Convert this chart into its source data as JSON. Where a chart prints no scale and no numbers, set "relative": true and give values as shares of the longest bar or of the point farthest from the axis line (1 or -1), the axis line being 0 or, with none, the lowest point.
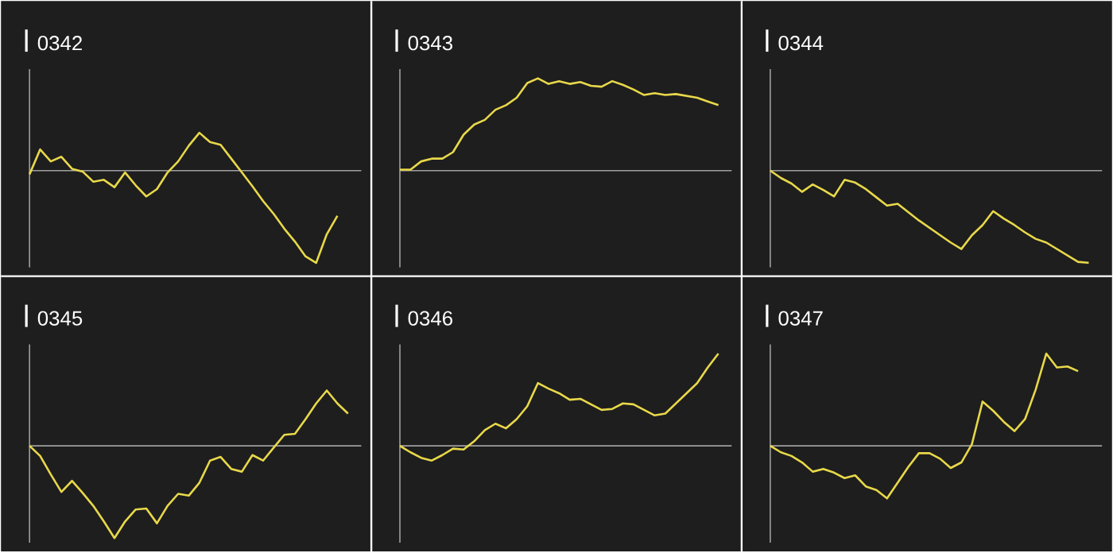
{
  "chart_data": [
    {
      "type": "line",
      "title": "0342",
      "relative": true,
      "color": "#e8d84a",
      "categories": [
        null,
        null,
        null,
        null,
        null,
        null,
        null,
        null,
        null,
        null,
        null,
        null,
        null,
        null,
        null,
        null,
        null,
        null,
        null,
        null,
        null,
        null,
        null,
        null,
        null,
        null,
        null,
        null,
        null,
        null,
        null,
        null
      ],
      "values": [
        -0.04,
        0.23,
        0.1,
        0.15,
        0.02,
        -0.01,
        -0.12,
        -0.1,
        -0.18,
        -0.02,
        -0.16,
        -0.28,
        -0.2,
        -0.02,
        0.1,
        0.27,
        0.41,
        0.31,
        0.28,
        0.13,
        -0.02,
        -0.17,
        -0.33,
        -0.47,
        -0.63,
        -0.77,
        -0.93,
        -1.0,
        -0.69,
        -0.49,
        null,
        null
      ]
    },
    {
      "type": "line",
      "title": "0343",
      "relative": true,
      "color": "#e8d84a",
      "categories": [
        null,
        null,
        null,
        null,
        null,
        null,
        null,
        null,
        null,
        null,
        null,
        null,
        null,
        null,
        null,
        null,
        null,
        null,
        null,
        null,
        null,
        null,
        null,
        null,
        null,
        null,
        null,
        null,
        null,
        null,
        null,
        null
      ],
      "values": [
        0.01,
        0.01,
        0.1,
        0.13,
        0.13,
        0.2,
        0.39,
        0.5,
        0.55,
        0.66,
        0.71,
        0.79,
        0.95,
        1.0,
        0.94,
        0.97,
        0.94,
        0.96,
        0.92,
        0.91,
        0.97,
        0.93,
        0.88,
        0.82,
        0.84,
        0.82,
        0.83,
        0.81,
        0.79,
        0.75,
        0.71,
        null
      ]
    },
    {
      "type": "line",
      "title": "0344",
      "relative": true,
      "color": "#e8d84a",
      "categories": [
        null,
        null,
        null,
        null,
        null,
        null,
        null,
        null,
        null,
        null,
        null,
        null,
        null,
        null,
        null,
        null,
        null,
        null,
        null,
        null,
        null,
        null,
        null,
        null,
        null,
        null,
        null,
        null,
        null,
        null,
        null,
        null
      ],
      "values": [
        0,
        -0.08,
        -0.14,
        -0.23,
        -0.15,
        -0.21,
        -0.28,
        -0.1,
        -0.13,
        -0.2,
        -0.29,
        -0.38,
        -0.36,
        -0.45,
        -0.54,
        -0.62,
        -0.7,
        -0.78,
        -0.85,
        -0.7,
        -0.59,
        -0.44,
        -0.52,
        -0.59,
        -0.67,
        -0.74,
        -0.78,
        -0.85,
        -0.92,
        -0.99,
        -1.0,
        null
      ]
    },
    {
      "type": "line",
      "title": "0345",
      "relative": true,
      "color": "#e8d84a",
      "categories": [
        null,
        null,
        null,
        null,
        null,
        null,
        null,
        null,
        null,
        null,
        null,
        null,
        null,
        null,
        null,
        null,
        null,
        null,
        null,
        null,
        null,
        null,
        null,
        null,
        null,
        null,
        null,
        null,
        null,
        null,
        null,
        null
      ],
      "values": [
        0,
        -0.11,
        -0.31,
        -0.5,
        -0.38,
        -0.51,
        -0.65,
        -0.82,
        -1.0,
        -0.82,
        -0.69,
        -0.68,
        -0.84,
        -0.65,
        -0.52,
        -0.54,
        -0.4,
        -0.16,
        -0.12,
        -0.25,
        -0.28,
        -0.1,
        -0.16,
        -0.02,
        0.12,
        0.13,
        0.29,
        0.46,
        0.6,
        0.46,
        0.35,
        null
      ]
    },
    {
      "type": "line",
      "title": "0346",
      "relative": true,
      "color": "#e8d84a",
      "categories": [
        null,
        null,
        null,
        null,
        null,
        null,
        null,
        null,
        null,
        null,
        null,
        null,
        null,
        null,
        null,
        null,
        null,
        null,
        null,
        null,
        null,
        null,
        null,
        null,
        null,
        null,
        null,
        null,
        null,
        null,
        null,
        null
      ],
      "values": [
        0,
        -0.07,
        -0.13,
        -0.16,
        -0.1,
        -0.03,
        -0.04,
        0.05,
        0.17,
        0.24,
        0.19,
        0.29,
        0.43,
        0.68,
        0.62,
        0.57,
        0.5,
        0.51,
        0.45,
        0.39,
        0.4,
        0.46,
        0.45,
        0.39,
        0.33,
        0.35,
        0.46,
        0.57,
        0.68,
        0.85,
        1.0,
        null
      ]
    },
    {
      "type": "line",
      "title": "0347",
      "relative": true,
      "color": "#e8d84a",
      "categories": [
        null,
        null,
        null,
        null,
        null,
        null,
        null,
        null,
        null,
        null,
        null,
        null,
        null,
        null,
        null,
        null,
        null,
        null,
        null,
        null,
        null,
        null,
        null,
        null,
        null,
        null,
        null,
        null,
        null,
        null,
        null,
        null
      ],
      "values": [
        0,
        -0.07,
        -0.11,
        -0.18,
        -0.28,
        -0.25,
        -0.29,
        -0.35,
        -0.32,
        -0.44,
        -0.48,
        -0.57,
        -0.4,
        -0.23,
        -0.08,
        -0.08,
        -0.14,
        -0.24,
        -0.18,
        0.02,
        0.48,
        0.38,
        0.26,
        0.16,
        0.29,
        0.61,
        1.0,
        0.85,
        0.86,
        0.81,
        null,
        null
      ]
    }
  ]
}
